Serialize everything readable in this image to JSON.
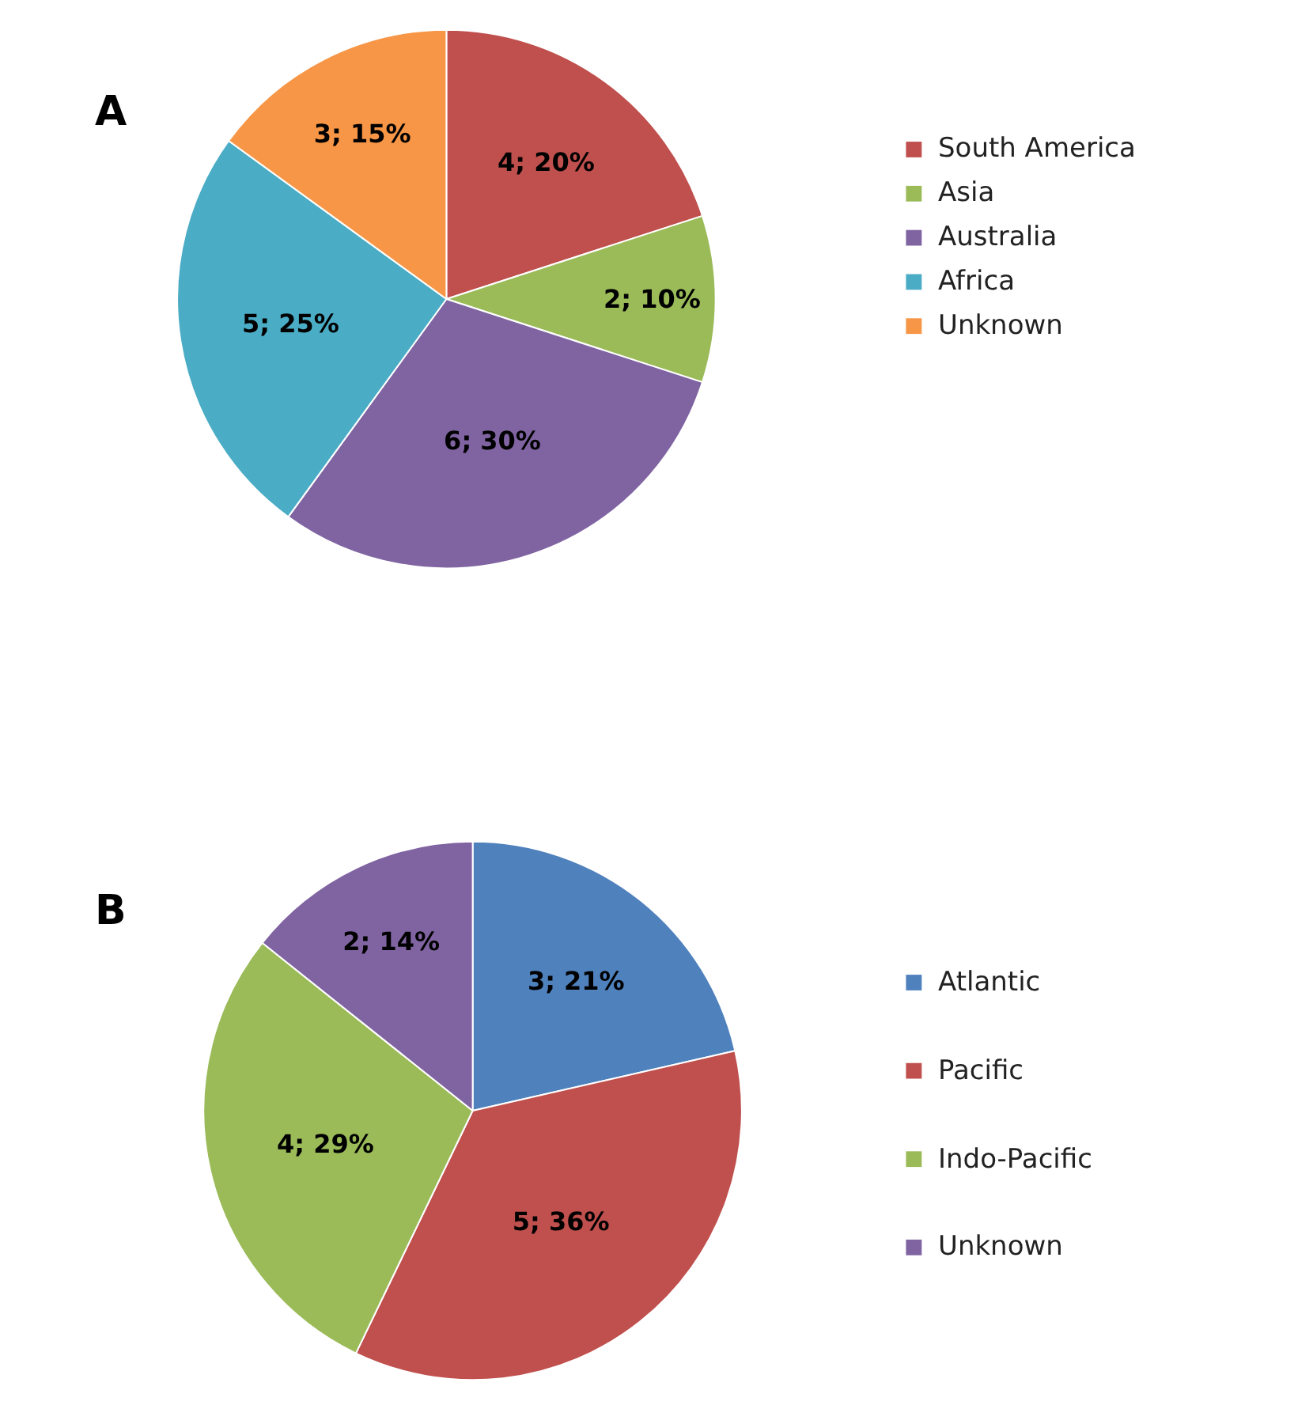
{
  "chart_data": [
    {
      "type": "pie",
      "title": "A",
      "categories": [
        "South America",
        "Asia",
        "Australia",
        "Africa",
        "Unknown"
      ],
      "values": [
        4,
        2,
        6,
        5,
        3
      ],
      "colors": [
        "#c0504d",
        "#9bbb59",
        "#8064a2",
        "#4bacc6",
        "#f79646"
      ],
      "value_labels": [
        "4; 20%",
        "2; 10%",
        "6; 30%",
        "5; 25%",
        "3; 15%"
      ],
      "legend": "right"
    },
    {
      "type": "pie",
      "title": "B",
      "categories": [
        "Atlantic",
        "Pacific",
        "Indo-Pacific",
        "Unknown"
      ],
      "values": [
        3,
        5,
        4,
        2
      ],
      "colors": [
        "#4f81bd",
        "#c0504d",
        "#9bbb59",
        "#8064a2"
      ],
      "value_labels": [
        "3; 21%",
        "5; 36%",
        "4; 29%",
        "2; 14%"
      ],
      "legend": "right"
    }
  ]
}
